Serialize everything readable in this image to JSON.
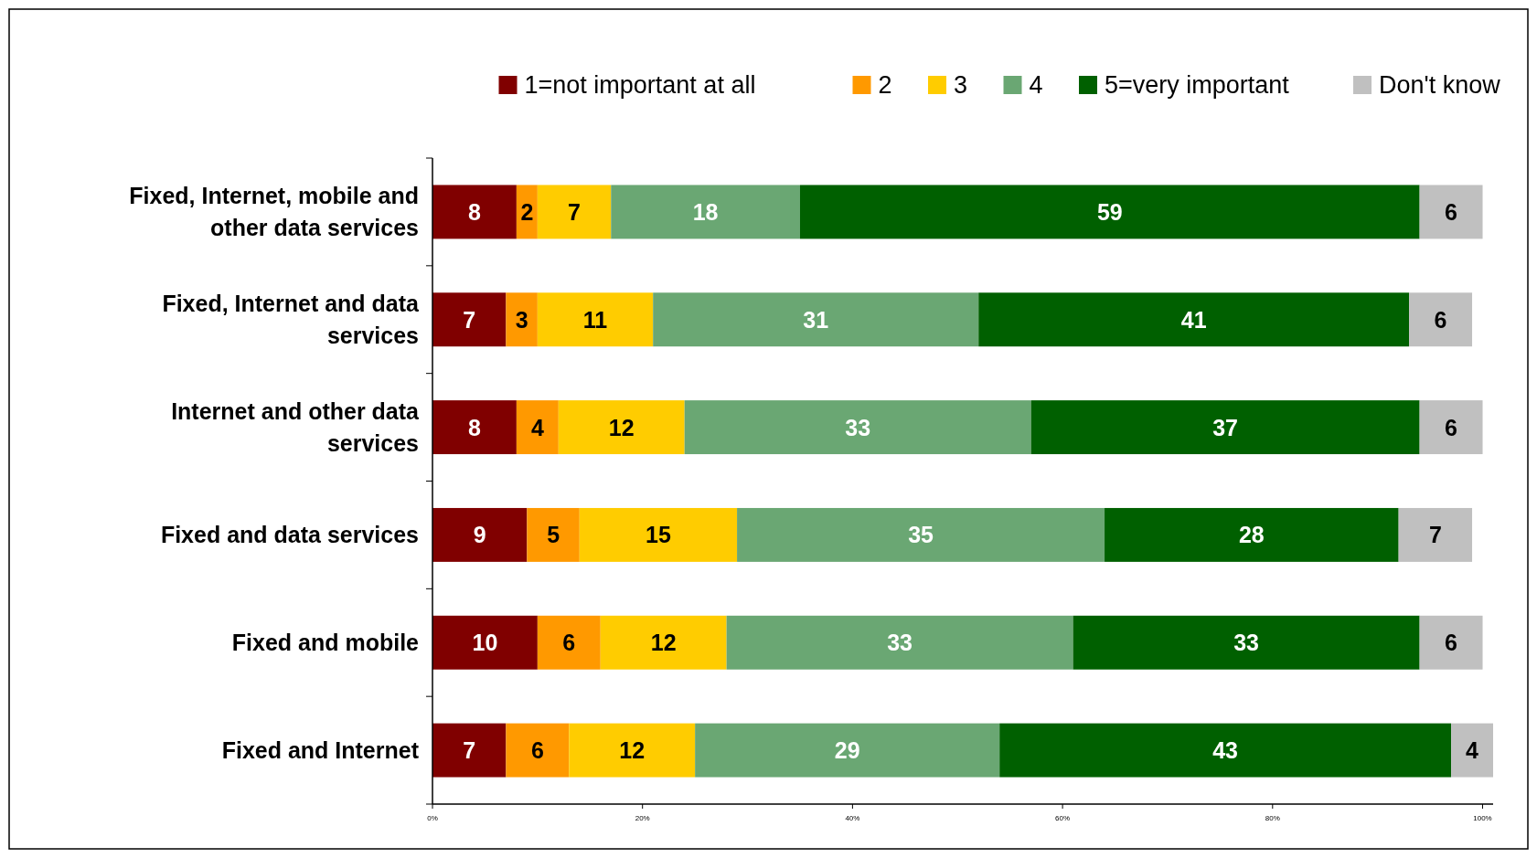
{
  "chart_data": {
    "type": "bar",
    "orientation": "horizontal",
    "stacked": true,
    "data_labels": true,
    "legend": "top right",
    "categories": [
      "Fixed, Internet, mobile and other data services",
      "Fixed, Internet and data services",
      "Internet and other data services",
      "Fixed and data services",
      "Fixed and mobile",
      "Fixed and Internet"
    ],
    "series": [
      {
        "name": "1=not important at all",
        "color": "#800000",
        "values": [
          8,
          7,
          8,
          9,
          10,
          7
        ]
      },
      {
        "name": "2",
        "color": "#ff9900",
        "values": [
          2,
          3,
          4,
          5,
          6,
          6
        ]
      },
      {
        "name": "3",
        "color": "#ffcc00",
        "values": [
          7,
          11,
          12,
          15,
          12,
          12
        ]
      },
      {
        "name": "4",
        "color": "#6aa773",
        "values": [
          18,
          31,
          33,
          35,
          33,
          29
        ]
      },
      {
        "name": "5=very important",
        "color": "#006000",
        "values": [
          59,
          41,
          37,
          28,
          33,
          43
        ]
      },
      {
        "name": "Don't know",
        "color": "#c0c0c0",
        "values": [
          6,
          6,
          6,
          7,
          6,
          4
        ]
      }
    ],
    "xlim": [
      0,
      101
    ],
    "xticks": [
      {
        "value": 0,
        "label": "0%"
      },
      {
        "value": 20,
        "label": "20%"
      },
      {
        "value": 40,
        "label": "40%"
      },
      {
        "value": 60,
        "label": "60%"
      },
      {
        "value": 80,
        "label": "80%"
      },
      {
        "value": 100,
        "label": "100%"
      }
    ]
  }
}
